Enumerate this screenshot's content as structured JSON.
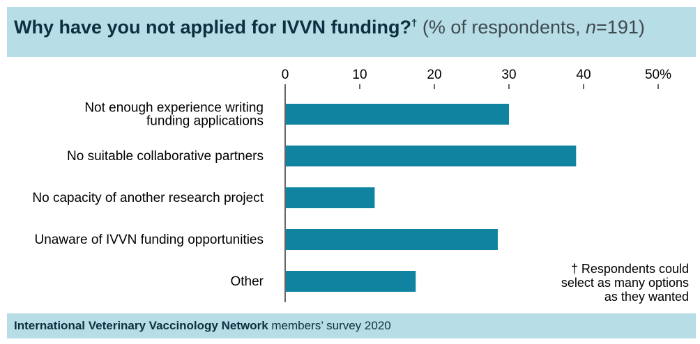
{
  "header": {
    "title": "Why have you not applied for IVVN funding?",
    "title_marker": "†",
    "subtitle_prefix": "(% of respondents, ",
    "subtitle_n_label": "n",
    "subtitle_n_value": "=191)"
  },
  "footnote": {
    "lines": [
      "† Respondents could",
      "select as many options",
      "as they wanted"
    ]
  },
  "source": {
    "bold": "International Veterinary Vaccinology Network",
    "rest": " members’ survey 2020"
  },
  "colors": {
    "bar": "#0f83a0",
    "panel": "#b7dde6",
    "axis": "#000000"
  },
  "chart_data": {
    "type": "bar",
    "orientation": "horizontal",
    "categories": [
      [
        "Not enough experience writing",
        "funding applications"
      ],
      [
        "No suitable collaborative partners"
      ],
      [
        "No capacity of another research project"
      ],
      [
        "Unaware of IVVN funding opportunities"
      ],
      [
        "Other"
      ]
    ],
    "values": [
      30,
      39,
      12,
      28.5,
      17.5
    ],
    "xlim": [
      0,
      50
    ],
    "ticks": [
      0,
      10,
      20,
      30,
      40,
      50
    ],
    "tick_labels": [
      "0",
      "10",
      "20",
      "30",
      "40",
      "50%"
    ],
    "axis_position": "top",
    "grid": false
  }
}
